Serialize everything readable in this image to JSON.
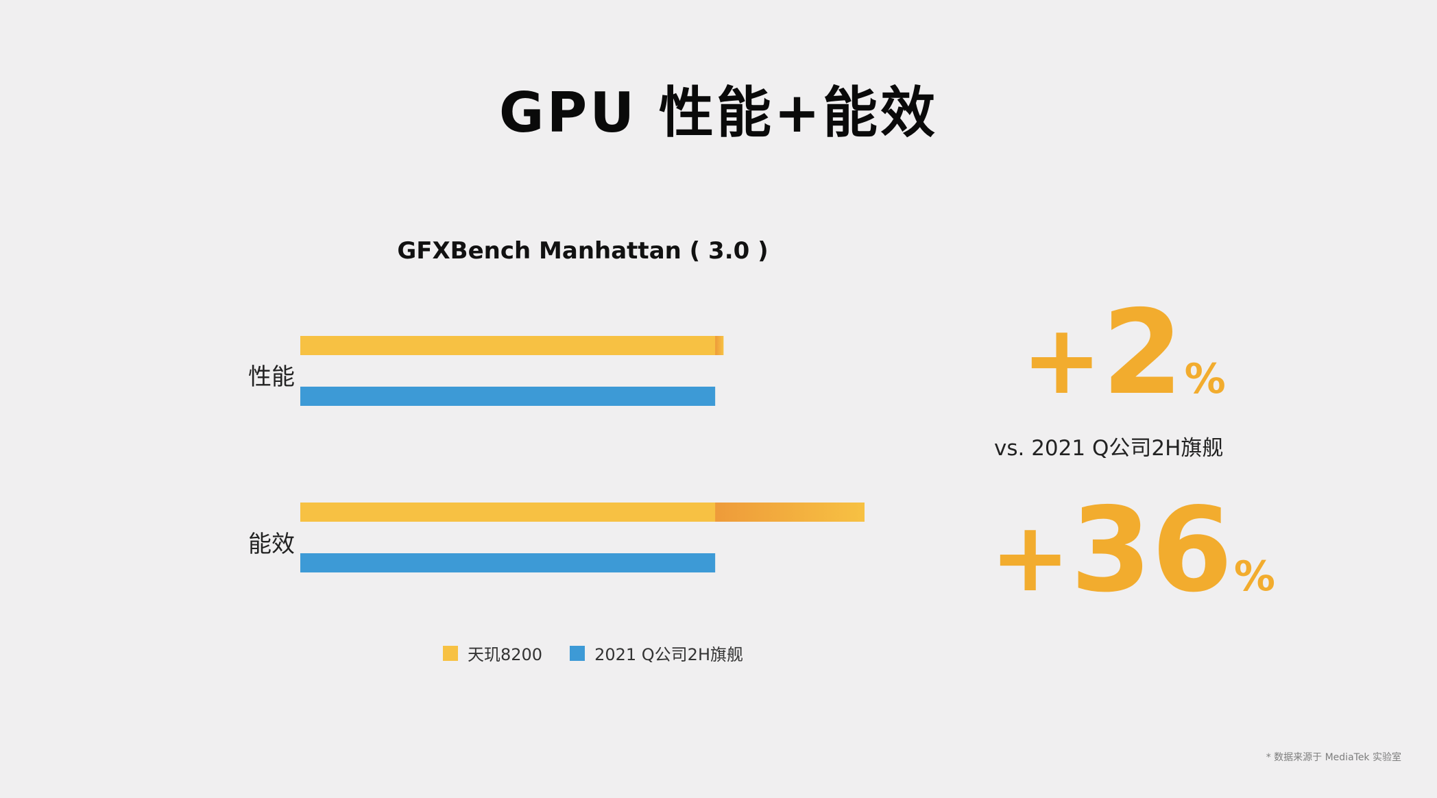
{
  "page": {
    "title": "GPU 性能+能效",
    "vs_text": "vs. 2021 Q公司2H旗舰",
    "footnote": "* 数据来源于 MediaTek 实验室"
  },
  "callouts": [
    {
      "plus": "+",
      "value": "2",
      "suffix": "%"
    },
    {
      "plus": "+",
      "value": "36",
      "suffix": "%"
    }
  ],
  "colors": {
    "dimensity": "#f7c143",
    "competitor": "#3d9ad6",
    "gain": "#ee9b3a",
    "callout": "#f2ac2e"
  },
  "chart_data": {
    "type": "bar",
    "orientation": "horizontal",
    "title": "GFXBench Manhattan ( 3.0 )",
    "categories": [
      "性能",
      "能效"
    ],
    "series": [
      {
        "name": "天玑8200",
        "values": [
          102,
          136
        ]
      },
      {
        "name": "2021 Q公司2H旗舰",
        "values": [
          100,
          100
        ]
      }
    ],
    "baseline_series": "2021 Q公司2H旗舰",
    "xlim": [
      0,
      136
    ],
    "grid": false,
    "legend_position": "bottom"
  }
}
